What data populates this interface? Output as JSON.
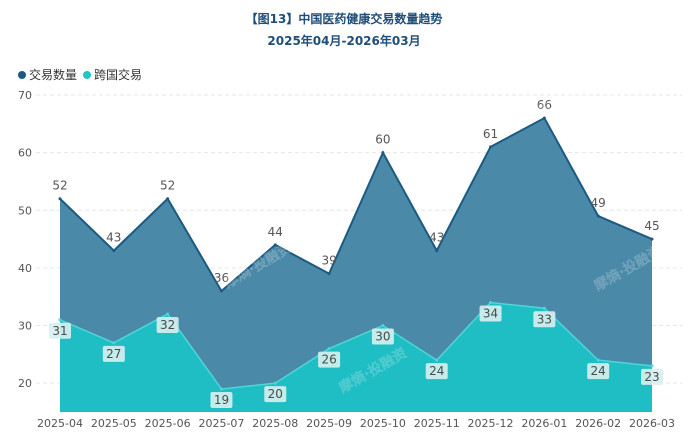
{
  "header": {
    "title": "【图13】中国医药健康交易数量趋势",
    "subtitle": "2025年04月-2026年03月"
  },
  "legend": [
    {
      "label": "交易数量",
      "color": "#1c5a82"
    },
    {
      "label": "跨国交易",
      "color": "#22c4c8"
    }
  ],
  "watermark": "摩熵·投融资",
  "colors": {
    "series1_fill": "#4a89a8",
    "series1_line": "#1c5a82",
    "series2_fill": "#1fbec4",
    "series2_line": "#4fd6d6",
    "grid": "#e6e6e6",
    "label_box": "#d7f0ef"
  },
  "chart_data": {
    "type": "area",
    "title": "【图13】中国医药健康交易数量趋势",
    "subtitle": "2025年04月-2026年03月",
    "categories": [
      "2025-04",
      "2025-05",
      "2025-06",
      "2025-07",
      "2025-08",
      "2025-09",
      "2025-10",
      "2025-11",
      "2025-12",
      "2026-01",
      "2026-02",
      "2026-03"
    ],
    "series": [
      {
        "name": "交易数量",
        "values": [
          52,
          43,
          52,
          36,
          44,
          39,
          60,
          43,
          61,
          66,
          49,
          45
        ]
      },
      {
        "name": "跨国交易",
        "values": [
          31,
          27,
          32,
          19,
          20,
          26,
          30,
          24,
          34,
          33,
          24,
          23
        ]
      }
    ],
    "yticks": [
      20,
      30,
      40,
      50,
      60,
      70
    ],
    "ylim": [
      15,
      70
    ],
    "grid": true,
    "legend_position": "top-left"
  }
}
